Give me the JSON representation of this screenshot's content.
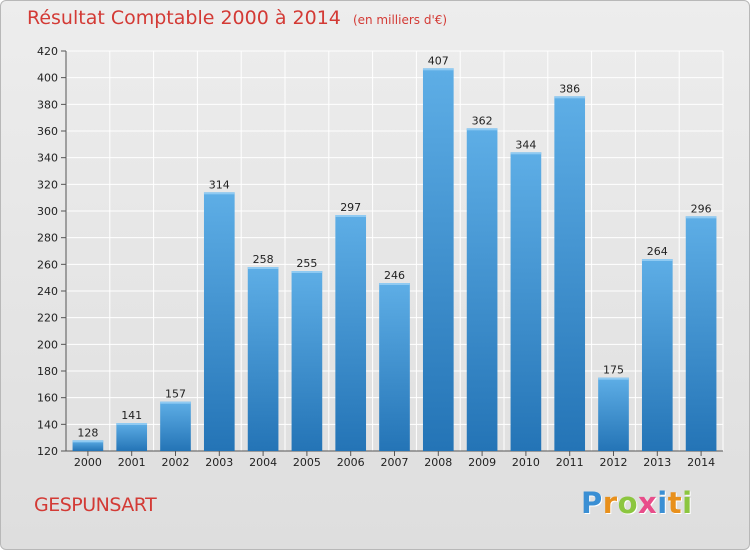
{
  "header": {
    "title": "Résultat Comptable 2000 à 2014",
    "subtitle": "(en milliers d'€)"
  },
  "footer": {
    "entity": "GESPUNSART",
    "logo": [
      "P",
      "r",
      "o",
      "x",
      "i",
      "t",
      "i"
    ]
  },
  "colors": {
    "title": "#d33a35",
    "bar_light": "#5eaee6",
    "bar_dark": "#2474b6",
    "logo": [
      "#3a8fd4",
      "#e8901c",
      "#8cc63f",
      "#e84d8a",
      "#3a8fd4",
      "#e8901c",
      "#8cc63f"
    ]
  },
  "chart_data": {
    "type": "bar",
    "title": "Résultat Comptable 2000 à 2014",
    "subtitle": "(en milliers d'€)",
    "xlabel": "",
    "ylabel": "",
    "categories": [
      "2000",
      "2001",
      "2002",
      "2003",
      "2004",
      "2005",
      "2006",
      "2007",
      "2008",
      "2009",
      "2010",
      "2011",
      "2012",
      "2013",
      "2014"
    ],
    "values": [
      128,
      141,
      157,
      314,
      258,
      255,
      297,
      246,
      407,
      362,
      344,
      386,
      175,
      264,
      296
    ],
    "ylim": [
      120,
      420
    ],
    "yticks": [
      120,
      140,
      160,
      180,
      200,
      220,
      240,
      260,
      280,
      300,
      320,
      340,
      360,
      380,
      400,
      420
    ],
    "grid": true
  }
}
